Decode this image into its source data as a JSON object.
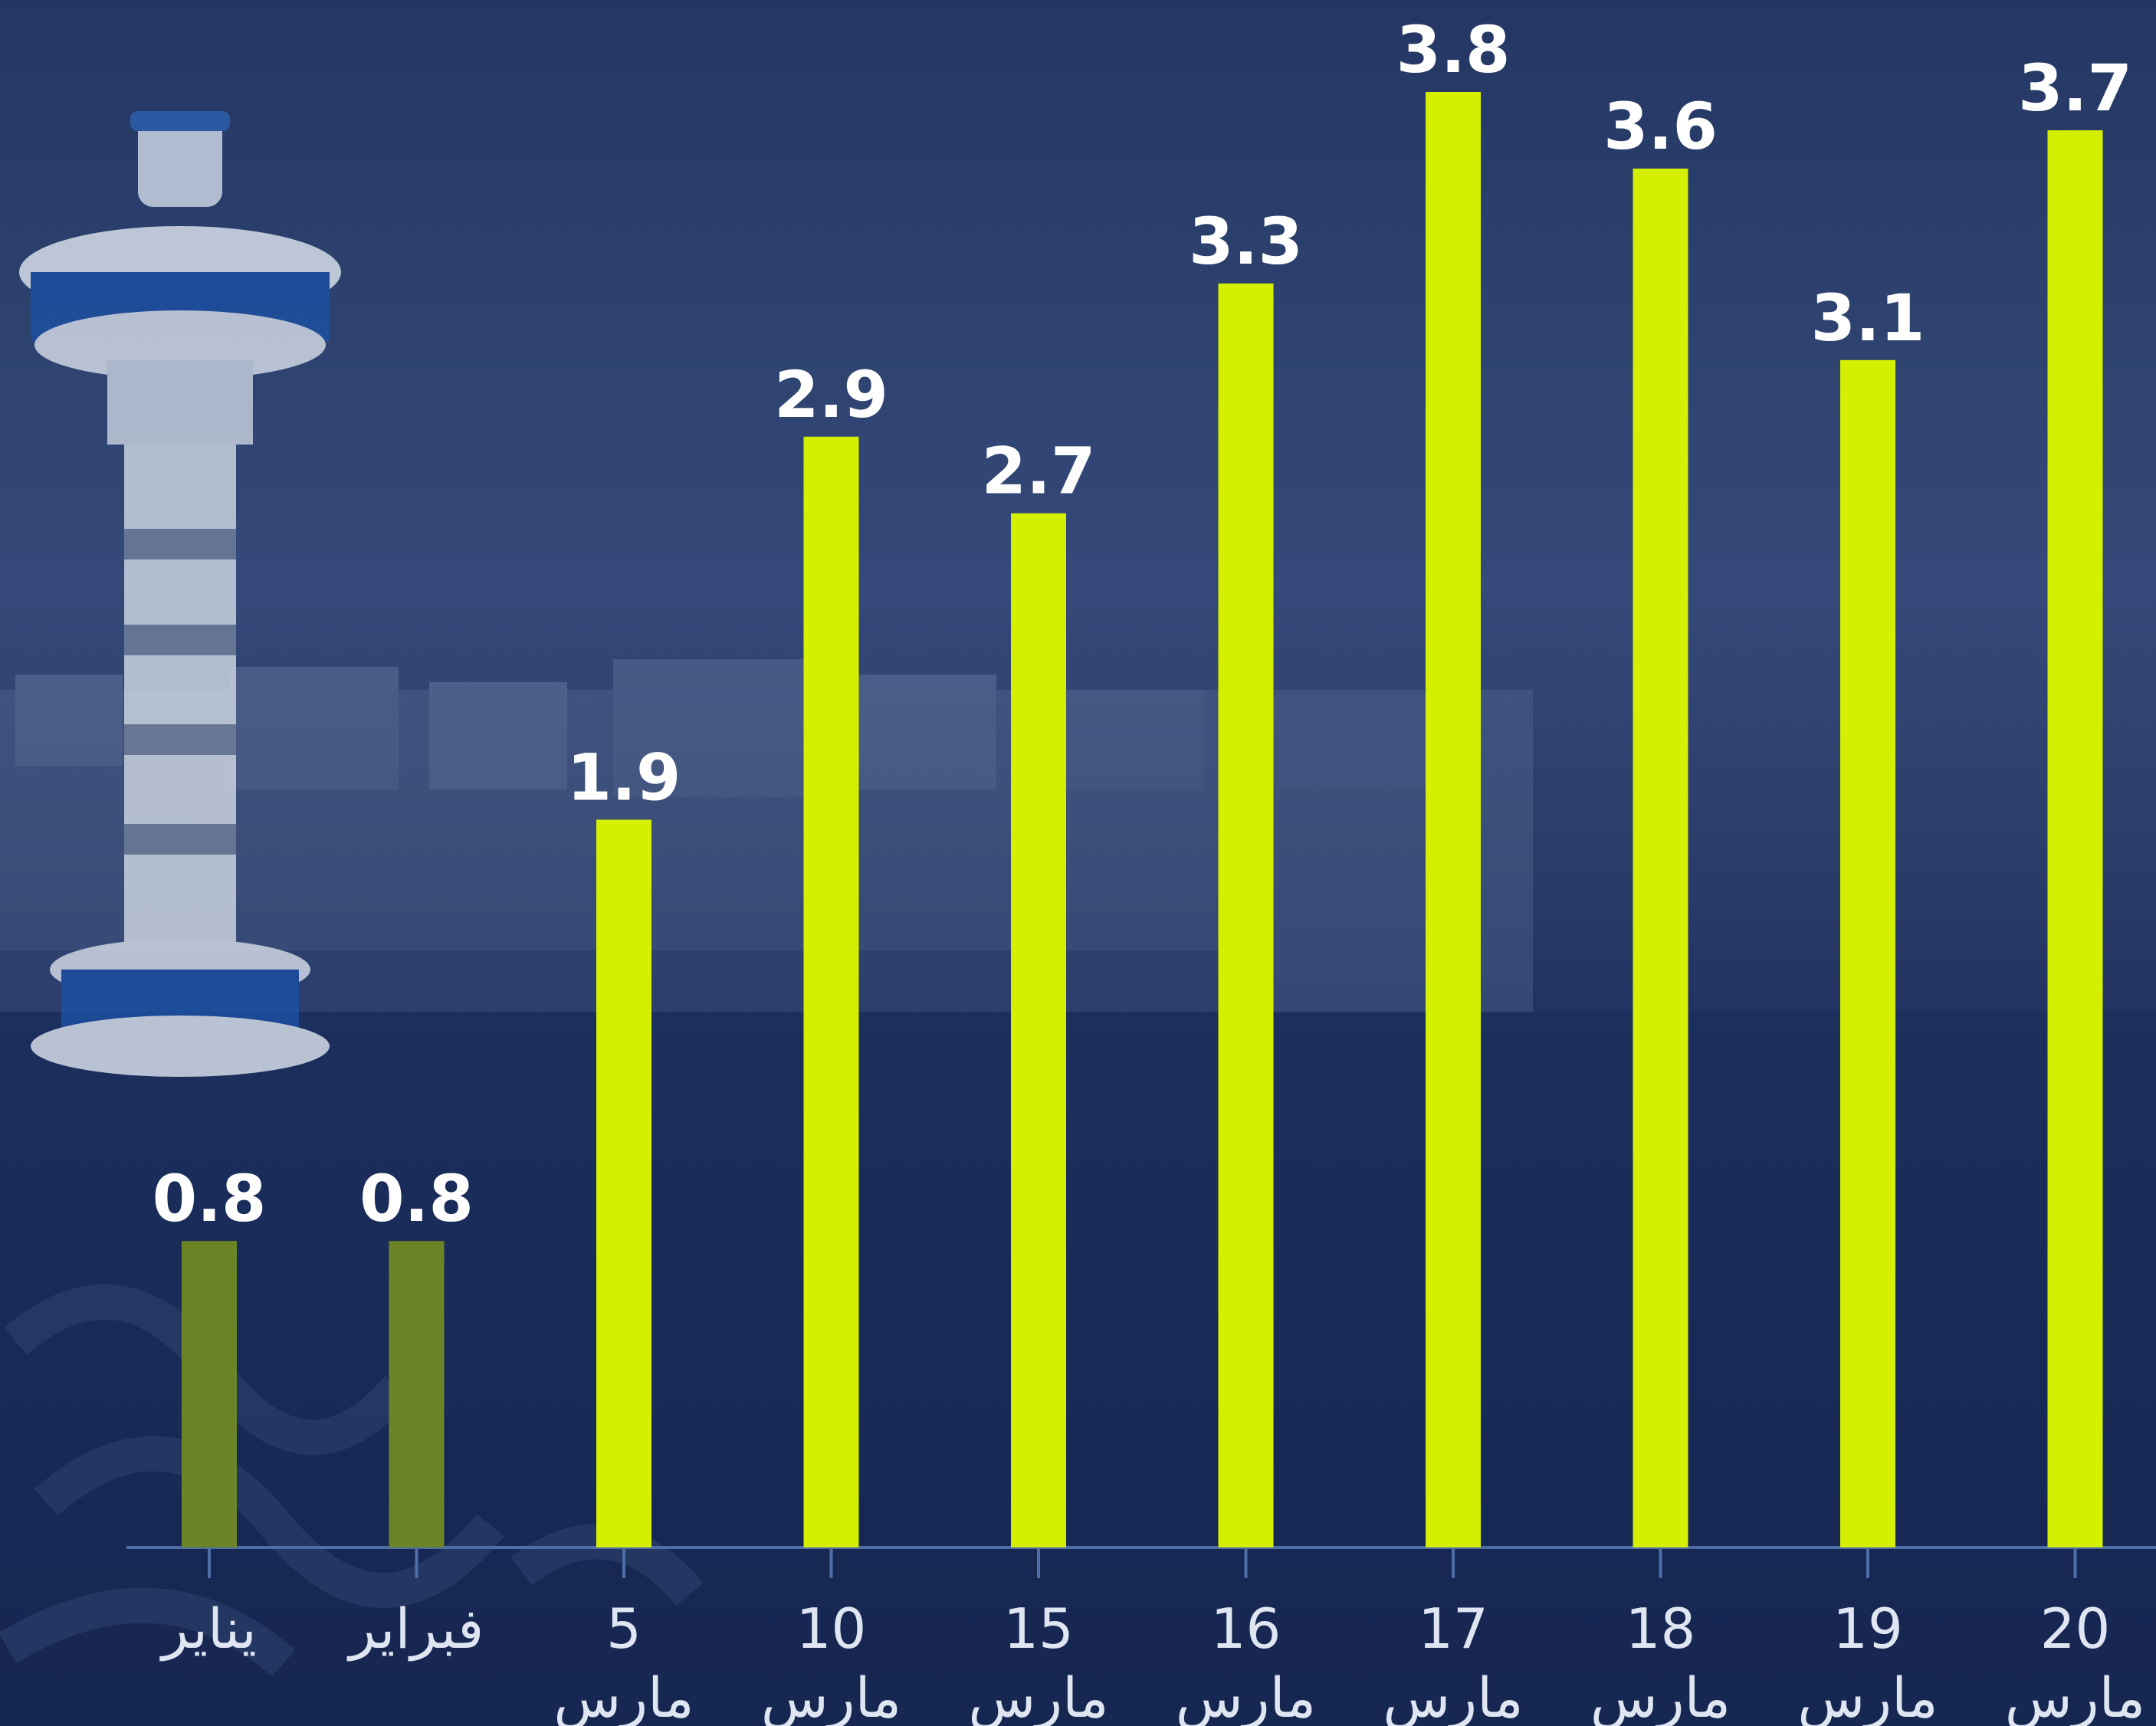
{
  "chart_data": {
    "type": "bar",
    "categories": [
      {
        "line1": "يناير",
        "line2": ""
      },
      {
        "line1": "فبراير",
        "line2": ""
      },
      {
        "line1": "5",
        "line2": "مارس"
      },
      {
        "line1": "10",
        "line2": "مارس"
      },
      {
        "line1": "15",
        "line2": "مارس"
      },
      {
        "line1": "16",
        "line2": "مارس"
      },
      {
        "line1": "17",
        "line2": "مارس"
      },
      {
        "line1": "18",
        "line2": "مارس"
      },
      {
        "line1": "19",
        "line2": "مارس"
      },
      {
        "line1": "20",
        "line2": "مارس"
      }
    ],
    "values": [
      0.8,
      0.8,
      1.9,
      2.9,
      2.7,
      3.3,
      3.8,
      3.6,
      3.1,
      3.7
    ],
    "value_labels": [
      "0.8",
      "0.8",
      "1.9",
      "2.9",
      "2.7",
      "3.3",
      "3.8",
      "3.6",
      "3.1",
      "3.7"
    ],
    "ylim": [
      0,
      3.8
    ],
    "grid": false,
    "legend": "none",
    "colors": {
      "bar_highlight": "#d4f000",
      "bar_muted": "#6b8526",
      "axis_line": "#4f6ea8",
      "value_label": "#ffffff",
      "tick_label": "#dfe6f2"
    },
    "muted_bars": [
      0,
      1
    ]
  }
}
